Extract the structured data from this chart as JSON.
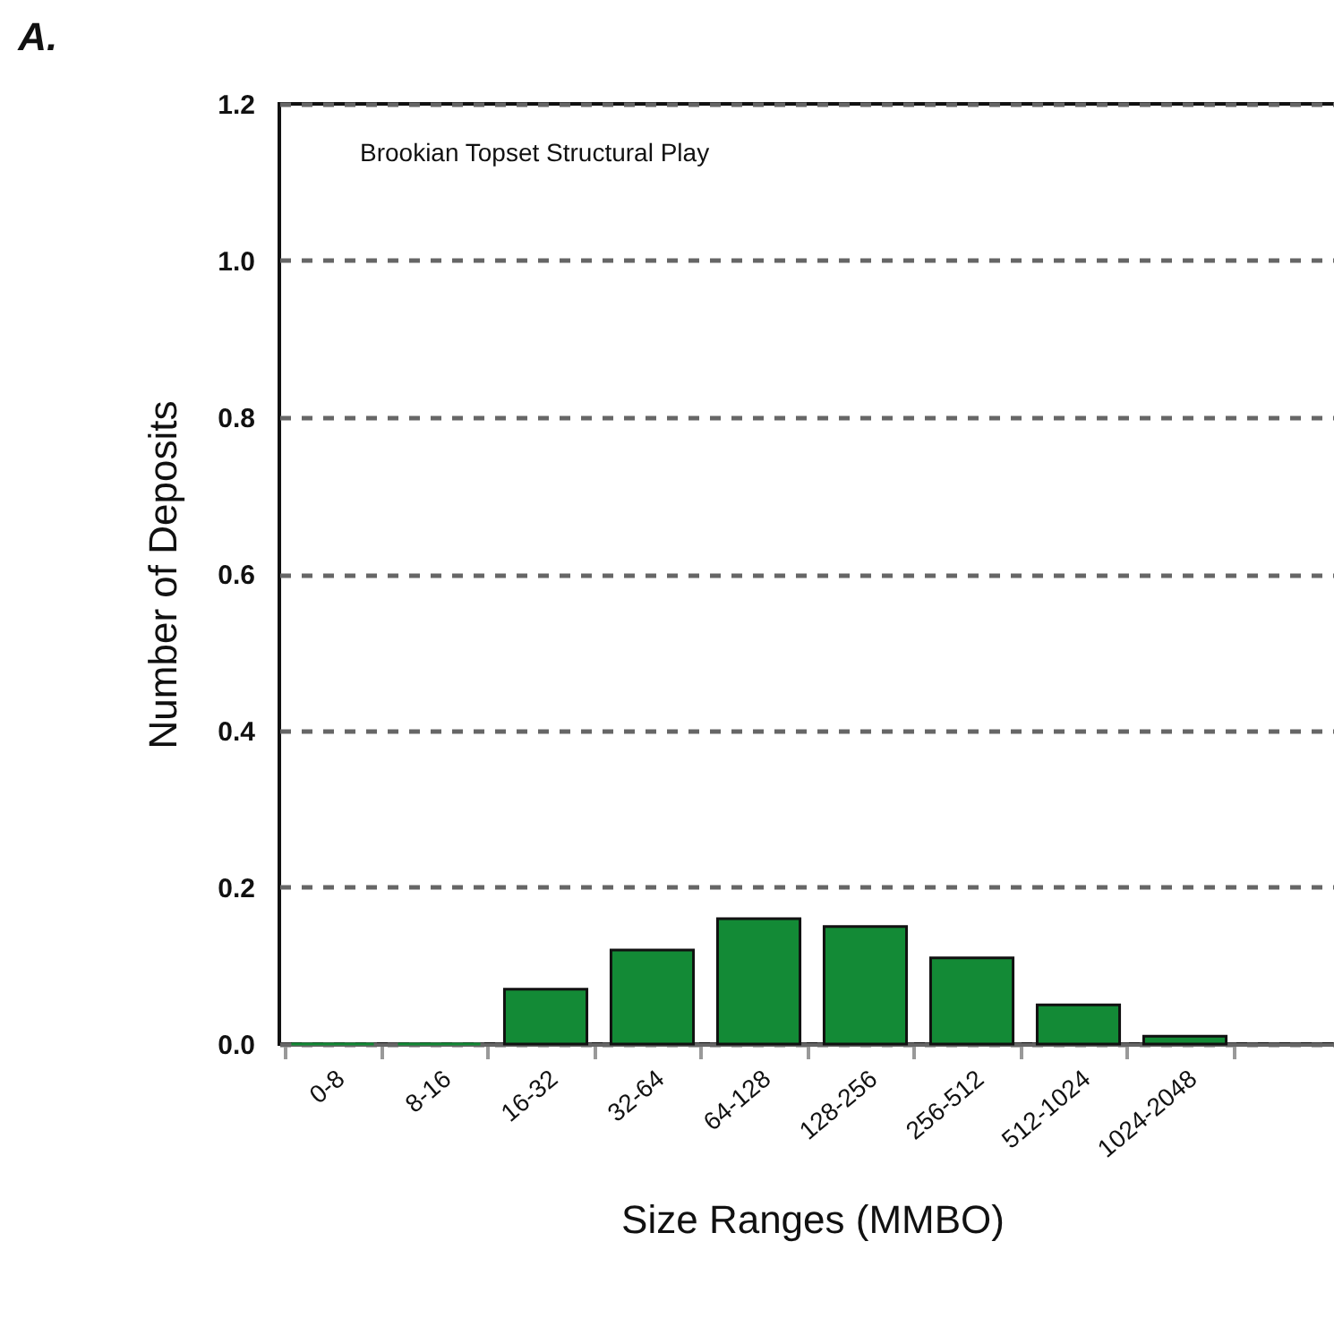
{
  "chart_data": {
    "type": "bar",
    "title": "A.",
    "xlabel": "Size Ranges (MMBO)",
    "ylabel": "Number of Deposits",
    "annotations": [
      "Brookian Topset Structural Play"
    ],
    "categories": [
      "0-8",
      "8-16",
      "16-32",
      "32-64",
      "64-128",
      "128-256",
      "256-512",
      "512-1024",
      "1024-2048",
      null
    ],
    "values": [
      0,
      0,
      0.07,
      0.12,
      0.16,
      0.15,
      0.11,
      0.05,
      0.01,
      null
    ],
    "color": "#138a36",
    "ylim": [
      0,
      1.2
    ],
    "yticks": [
      {
        "value": 0,
        "label": "0.0"
      },
      0.2,
      0.4,
      0.6,
      0.8,
      {
        "value": 1,
        "label": "1.0"
      },
      1.2
    ],
    "grid": "y"
  }
}
